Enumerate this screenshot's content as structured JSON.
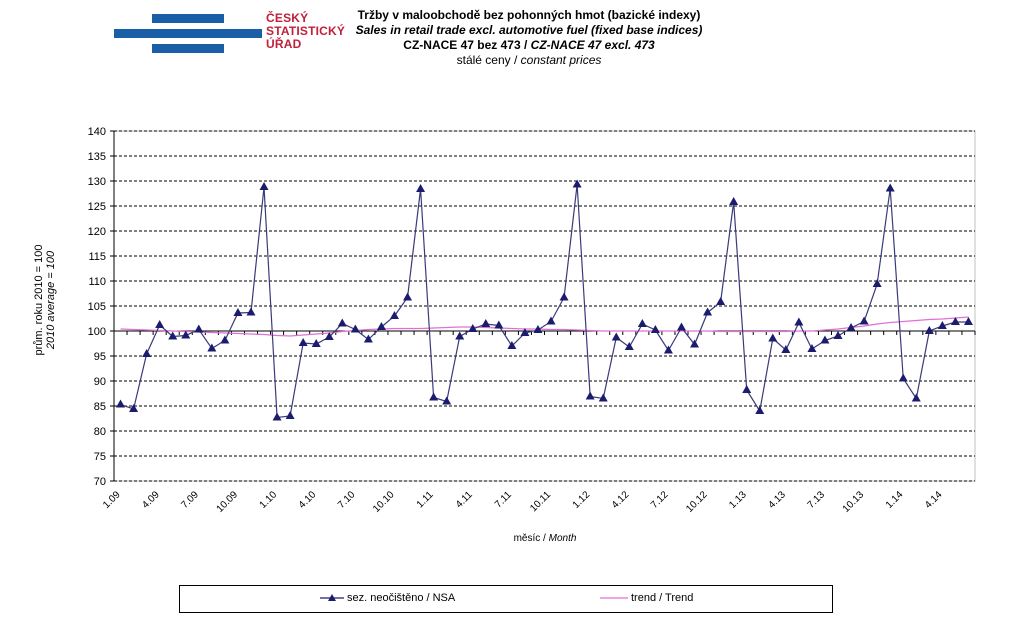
{
  "logo": {
    "lines": [
      "ČESKÝ",
      "STATISTICKÝ",
      "ÚŘAD"
    ],
    "bar_color": "#1a5ea8",
    "text_color": "#c0203a"
  },
  "titles": {
    "line1": "Tržby v maloobchodě  bez pohonných  hmot (bazické indexy)",
    "line2": "Sales in retail trade excl. automotive fuel (fixed base indices)",
    "line3_cz": "CZ-NACE 47 bez 473 / ",
    "line3_en": "CZ-NACE 47 excl. 473",
    "line4_cz": "stálé ceny / ",
    "line4_en": "constant  prices"
  },
  "chart_data": {
    "type": "line",
    "title": "Tržby v maloobchodě bez pohonných hmot (bazické indexy) / Sales in retail trade excl. automotive fuel (fixed base indices)",
    "xlabel_cz": "měsíc / ",
    "xlabel_en": "Month",
    "ylabel_cz": "prům. roku 2010 = 100",
    "ylabel_en": "2010 average = 100",
    "ylim": [
      70,
      140
    ],
    "ytick_step": 5,
    "x_axis_crosses_at": 100,
    "grid": "horizontal dashed",
    "legend_placement": "bottom",
    "x_start": "1.09",
    "x_end": "6.14",
    "tick_labels": [
      "1.09",
      "4.09",
      "7.09",
      "10.09",
      "1.10",
      "4.10",
      "7.10",
      "10.10",
      "1.11",
      "4.11",
      "7.11",
      "10.11",
      "1.12",
      "4.12",
      "7.12",
      "10.12",
      "1.13",
      "4.13",
      "7.13",
      "10.13",
      "1.14",
      "4.14"
    ],
    "series": [
      {
        "name": "sez. neočištěno / NSA",
        "color": "#1c1c6e",
        "marker": "triangle",
        "values": [
          85.3,
          84.4,
          95.4,
          101.2,
          98.9,
          99.1,
          100.3,
          96.5,
          98.1,
          103.6,
          103.7,
          128.8,
          82.7,
          83.0,
          97.6,
          97.4,
          98.8,
          101.5,
          100.3,
          98.3,
          100.8,
          103.0,
          106.7,
          128.4,
          86.7,
          85.9,
          98.9,
          100.4,
          101.4,
          101.1,
          97.0,
          99.6,
          100.2,
          101.9,
          106.7,
          129.3,
          86.9,
          86.5,
          98.7,
          96.8,
          101.4,
          100.2,
          96.1,
          100.7,
          97.3,
          103.7,
          105.8,
          125.8,
          88.2,
          84.0,
          98.5,
          96.2,
          101.7,
          96.4,
          98.1,
          99.0,
          100.6,
          101.9,
          109.4,
          128.5,
          90.5,
          86.5,
          100.0,
          101.0,
          101.8,
          101.8
        ]
      },
      {
        "name": "trend / Trend",
        "color": "#e070d8",
        "marker": "none",
        "values": [
          100.4,
          100.3,
          100.2,
          100.1,
          100.0,
          99.9,
          99.8,
          99.7,
          99.6,
          99.5,
          99.4,
          99.3,
          99.1,
          99.0,
          99.2,
          99.4,
          99.6,
          99.9,
          100.1,
          100.3,
          100.4,
          100.5,
          100.5,
          100.5,
          100.6,
          100.7,
          100.8,
          100.8,
          100.7,
          100.6,
          100.5,
          100.4,
          100.4,
          100.3,
          100.3,
          100.2,
          100.1,
          100.0,
          100.0,
          100.0,
          100.0,
          100.0,
          100.0,
          100.0,
          100.0,
          100.0,
          99.9,
          99.9,
          99.9,
          99.9,
          99.9,
          99.9,
          100.0,
          100.0,
          100.2,
          100.4,
          100.7,
          101.0,
          101.4,
          101.7,
          101.9,
          102.1,
          102.3,
          102.4,
          102.6,
          102.8
        ]
      }
    ]
  }
}
